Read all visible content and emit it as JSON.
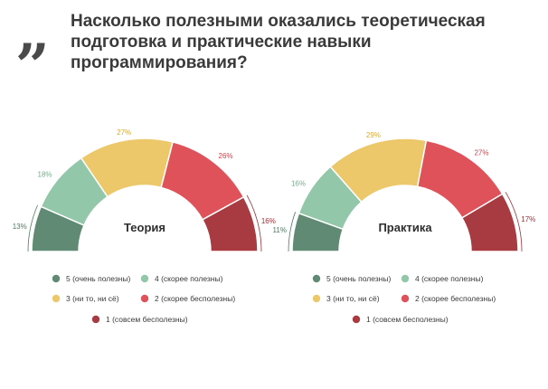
{
  "quote_icon": "„",
  "title": "Насколько полезными оказались теоретическая подготовка и практические навыки программирования?",
  "colors": {
    "5": "#608a73",
    "4": "#93c7a9",
    "3": "#edc86a",
    "2": "#df525a",
    "1": "#a83a41"
  },
  "chart_data": [
    {
      "type": "pie",
      "subtype": "half-donut",
      "title": "Теория",
      "categories": [
        "5 (очень полезны)",
        "4 (скорее полезны)",
        "3 (ни то, ни сё)",
        "2 (скорее бесполезны)",
        "1 (совсем бесполезны)"
      ],
      "values": [
        13,
        18,
        27,
        26,
        16
      ],
      "labels": [
        "13%",
        "18%",
        "27%",
        "26%",
        "16%"
      ],
      "legend_position": "bottom"
    },
    {
      "type": "pie",
      "subtype": "half-donut",
      "title": "Практика",
      "categories": [
        "5 (очень полезны)",
        "4 (скорее полезны)",
        "3 (ни то, ни сё)",
        "2 (скорее бесполезны)",
        "1 (совсем бесполезны)"
      ],
      "values": [
        11,
        16,
        29,
        27,
        17
      ],
      "labels": [
        "11%",
        "16%",
        "29%",
        "27%",
        "17%"
      ],
      "legend_position": "bottom"
    }
  ]
}
